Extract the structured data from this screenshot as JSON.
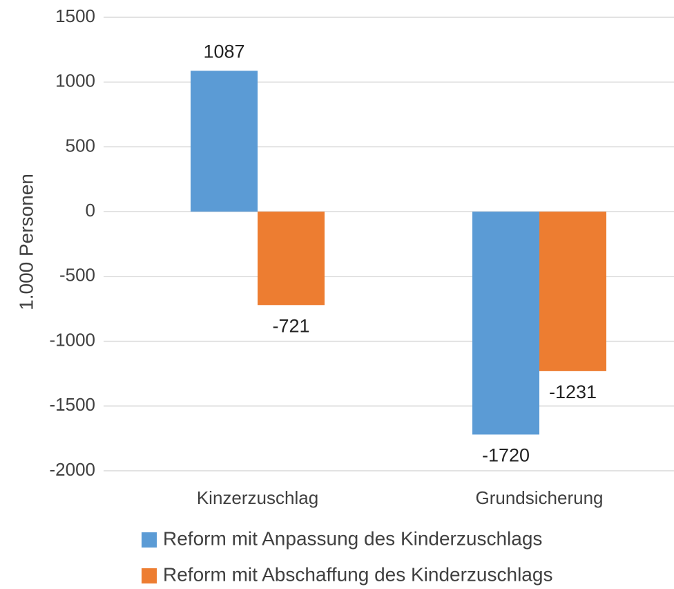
{
  "chart_data": {
    "type": "bar",
    "ylabel": "1.000 Personen",
    "categories": [
      "Kinzerzuschlag",
      "Grundsicherung"
    ],
    "series": [
      {
        "name": "Reform mit Anpassung des Kinderzuschlags",
        "color": "#5b9bd5",
        "values": [
          1087,
          -1720
        ]
      },
      {
        "name": "Reform mit Abschaffung des Kinderzuschlags",
        "color": "#ed7d31",
        "values": [
          -721,
          -1231
        ]
      }
    ],
    "ylim": [
      -2000,
      1500
    ],
    "yticks": [
      -2000,
      -1500,
      -1000,
      -500,
      0,
      500,
      1000,
      1500
    ],
    "grid": true,
    "legend": "bottom"
  }
}
